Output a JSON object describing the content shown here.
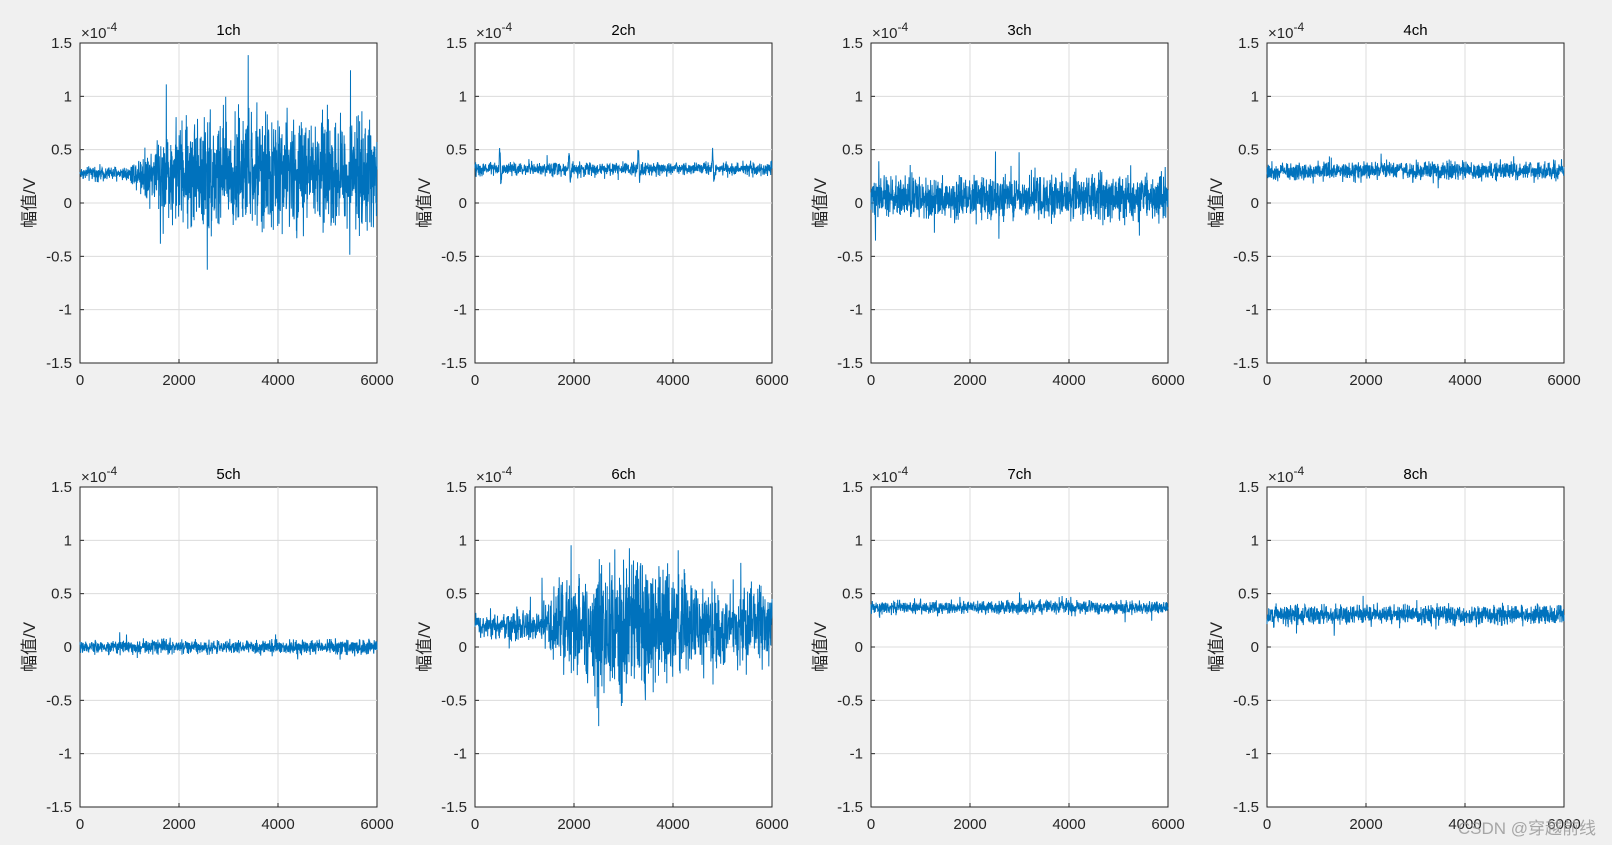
{
  "chart_data": [
    {
      "type": "line",
      "title": "1ch",
      "ylabel": "幅值/V",
      "exponent_base": "×10",
      "exponent_power": "-4",
      "xlim": [
        0,
        6000
      ],
      "ylim": [
        -1.5,
        1.5
      ],
      "xticks": [
        "0",
        "2000",
        "4000",
        "6000"
      ],
      "yticks": [
        "-1.5",
        "-1",
        "-0.5",
        "0",
        "0.5",
        "1",
        "1.5"
      ],
      "grid": true,
      "x": [
        0,
        1000,
        1700,
        2600,
        3500,
        4500,
        6000
      ],
      "baseline": 0.28,
      "noise": [
        0.05,
        0.06,
        0.35,
        0.5,
        0.45,
        0.45,
        0.4
      ],
      "series": [
        {
          "color": "#0072bd"
        }
      ]
    },
    {
      "type": "line",
      "title": "2ch",
      "ylabel": "幅值/V",
      "exponent_base": "×10",
      "exponent_power": "-4",
      "xlim": [
        0,
        6000
      ],
      "ylim": [
        -1.5,
        1.5
      ],
      "xticks": [
        "0",
        "2000",
        "4000",
        "6000"
      ],
      "yticks": [
        "-1.5",
        "-1",
        "-0.5",
        "0",
        "0.5",
        "1",
        "1.5"
      ],
      "grid": true,
      "x": [
        0,
        6000
      ],
      "baseline": 0.32,
      "noise": [
        0.05,
        0.05
      ],
      "spikes": [
        {
          "x": 500,
          "y": 0.52
        },
        {
          "x": 1900,
          "y": 0.5
        },
        {
          "x": 3300,
          "y": 0.52
        },
        {
          "x": 4800,
          "y": 0.53
        }
      ],
      "series": [
        {
          "color": "#0072bd"
        }
      ]
    },
    {
      "type": "line",
      "title": "3ch",
      "ylabel": "幅值/V",
      "exponent_base": "×10",
      "exponent_power": "-4",
      "xlim": [
        0,
        6000
      ],
      "ylim": [
        -1.5,
        1.5
      ],
      "xticks": [
        "0",
        "2000",
        "4000",
        "6000"
      ],
      "yticks": [
        "-1.5",
        "-1",
        "-0.5",
        "0",
        "0.5",
        "1",
        "1.5"
      ],
      "grid": true,
      "x": [
        0,
        6000
      ],
      "baseline": 0.05,
      "noise": [
        0.15,
        0.18
      ],
      "series": [
        {
          "color": "#0072bd"
        }
      ]
    },
    {
      "type": "line",
      "title": "4ch",
      "ylabel": "幅值/V",
      "exponent_base": "×10",
      "exponent_power": "-4",
      "xlim": [
        0,
        6000
      ],
      "ylim": [
        -1.5,
        1.5
      ],
      "xticks": [
        "0",
        "2000",
        "4000",
        "6000"
      ],
      "yticks": [
        "-1.5",
        "-1",
        "-0.5",
        "0",
        "0.5",
        "1",
        "1.5"
      ],
      "grid": true,
      "x": [
        0,
        6000
      ],
      "baseline": 0.3,
      "noise": [
        0.07,
        0.07
      ],
      "series": [
        {
          "color": "#0072bd"
        }
      ]
    },
    {
      "type": "line",
      "title": "5ch",
      "ylabel": "幅值/V",
      "exponent_base": "×10",
      "exponent_power": "-4",
      "xlim": [
        0,
        6000
      ],
      "ylim": [
        -1.5,
        1.5
      ],
      "xticks": [
        "0",
        "2000",
        "4000",
        "6000"
      ],
      "yticks": [
        "-1.5",
        "-1",
        "-0.5",
        "0",
        "0.5",
        "1",
        "1.5"
      ],
      "grid": true,
      "x": [
        0,
        6000
      ],
      "baseline": 0.0,
      "noise": [
        0.05,
        0.06
      ],
      "series": [
        {
          "color": "#0072bd"
        }
      ]
    },
    {
      "type": "line",
      "title": "6ch",
      "ylabel": "幅值/V",
      "exponent_base": "×10",
      "exponent_power": "-4",
      "xlim": [
        0,
        6000
      ],
      "ylim": [
        -1.5,
        1.5
      ],
      "xticks": [
        "0",
        "2000",
        "4000",
        "6000"
      ],
      "yticks": [
        "-1.5",
        "-1",
        "-0.5",
        "0",
        "0.5",
        "1",
        "1.5"
      ],
      "grid": true,
      "x": [
        0,
        1200,
        1800,
        3000,
        3600,
        4800,
        6000
      ],
      "baseline": 0.2,
      "noise": [
        0.1,
        0.12,
        0.35,
        0.55,
        0.5,
        0.3,
        0.3
      ],
      "series": [
        {
          "color": "#0072bd"
        }
      ]
    },
    {
      "type": "line",
      "title": "7ch",
      "ylabel": "幅值/V",
      "exponent_base": "×10",
      "exponent_power": "-4",
      "xlim": [
        0,
        6000
      ],
      "ylim": [
        -1.5,
        1.5
      ],
      "xticks": [
        "0",
        "2000",
        "4000",
        "6000"
      ],
      "yticks": [
        "-1.5",
        "-1",
        "-0.5",
        "0",
        "0.5",
        "1",
        "1.5"
      ],
      "grid": true,
      "x": [
        0,
        6000
      ],
      "baseline": 0.37,
      "noise": [
        0.05,
        0.05
      ],
      "series": [
        {
          "color": "#0072bd"
        }
      ]
    },
    {
      "type": "line",
      "title": "8ch",
      "ylabel": "幅值/V",
      "exponent_base": "×10",
      "exponent_power": "-4",
      "xlim": [
        0,
        6000
      ],
      "ylim": [
        -1.5,
        1.5
      ],
      "xticks": [
        "0",
        "2000",
        "4000",
        "6000"
      ],
      "yticks": [
        "-1.5",
        "-1",
        "-0.5",
        "0",
        "0.5",
        "1",
        "1.5"
      ],
      "grid": true,
      "x": [
        0,
        6000
      ],
      "baseline": 0.3,
      "noise": [
        0.08,
        0.08
      ],
      "series": [
        {
          "color": "#0072bd"
        }
      ]
    }
  ],
  "watermark": "CSDN @穿越前线"
}
